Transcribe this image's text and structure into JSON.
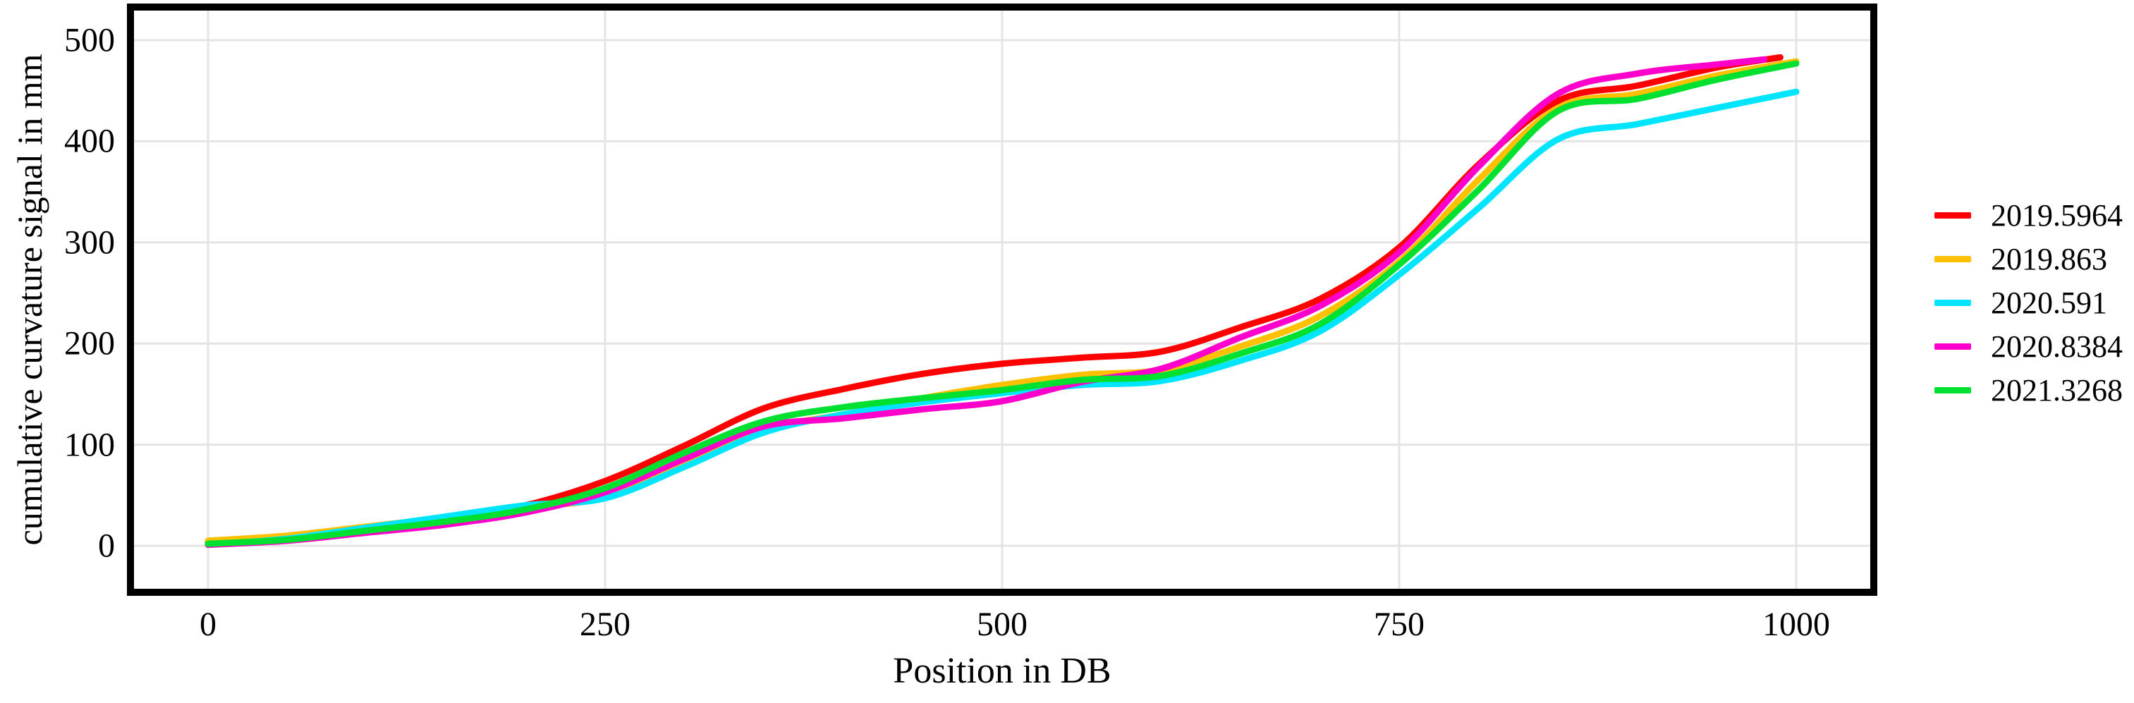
{
  "chart_data": {
    "type": "line",
    "title": "",
    "xlabel": "Position in DB",
    "ylabel": "cumulative curvature signal in mm",
    "xlim": [
      0,
      1000
    ],
    "ylim": [
      0,
      500
    ],
    "x_ticks": [
      0,
      250,
      500,
      750,
      1000
    ],
    "y_ticks": [
      0,
      100,
      200,
      300,
      400,
      500
    ],
    "grid": true,
    "grid_color": "#e4e4e4",
    "border_color": "#000000",
    "legend_position": "right",
    "series": [
      {
        "name": "2019.5964",
        "color": "#ff0000",
        "points": [
          [
            0,
            3
          ],
          [
            50,
            8
          ],
          [
            100,
            17
          ],
          [
            150,
            26
          ],
          [
            200,
            40
          ],
          [
            250,
            64
          ],
          [
            300,
            99
          ],
          [
            350,
            136
          ],
          [
            400,
            155
          ],
          [
            450,
            170
          ],
          [
            500,
            180
          ],
          [
            550,
            186
          ],
          [
            600,
            192
          ],
          [
            650,
            216
          ],
          [
            700,
            244
          ],
          [
            750,
            295
          ],
          [
            800,
            377
          ],
          [
            850,
            440
          ],
          [
            900,
            455
          ],
          [
            950,
            473
          ],
          [
            990,
            483
          ]
        ]
      },
      {
        "name": "2019.863",
        "color": "#ffc000",
        "points": [
          [
            0,
            5
          ],
          [
            50,
            10
          ],
          [
            100,
            19
          ],
          [
            150,
            28
          ],
          [
            200,
            38
          ],
          [
            250,
            48
          ],
          [
            300,
            83
          ],
          [
            350,
            115
          ],
          [
            400,
            130
          ],
          [
            450,
            146
          ],
          [
            500,
            159
          ],
          [
            550,
            169
          ],
          [
            600,
            174
          ],
          [
            650,
            197
          ],
          [
            700,
            227
          ],
          [
            750,
            281
          ],
          [
            800,
            362
          ],
          [
            850,
            433
          ],
          [
            900,
            447
          ],
          [
            950,
            465
          ],
          [
            1000,
            479
          ]
        ]
      },
      {
        "name": "2020.591",
        "color": "#00e5ff",
        "points": [
          [
            0,
            1
          ],
          [
            50,
            7
          ],
          [
            100,
            18
          ],
          [
            150,
            29
          ],
          [
            200,
            40
          ],
          [
            250,
            47
          ],
          [
            300,
            78
          ],
          [
            350,
            112
          ],
          [
            400,
            130
          ],
          [
            450,
            142
          ],
          [
            500,
            151
          ],
          [
            550,
            159
          ],
          [
            600,
            163
          ],
          [
            650,
            183
          ],
          [
            700,
            212
          ],
          [
            750,
            268
          ],
          [
            800,
            334
          ],
          [
            850,
            402
          ],
          [
            900,
            417
          ],
          [
            950,
            433
          ],
          [
            1000,
            449
          ]
        ]
      },
      {
        "name": "2020.8384",
        "color": "#ff00cc",
        "points": [
          [
            0,
            1
          ],
          [
            50,
            5
          ],
          [
            100,
            13
          ],
          [
            150,
            21
          ],
          [
            200,
            33
          ],
          [
            250,
            53
          ],
          [
            300,
            86
          ],
          [
            350,
            118
          ],
          [
            400,
            126
          ],
          [
            450,
            135
          ],
          [
            500,
            143
          ],
          [
            550,
            162
          ],
          [
            600,
            175
          ],
          [
            650,
            206
          ],
          [
            700,
            237
          ],
          [
            750,
            290
          ],
          [
            800,
            375
          ],
          [
            850,
            447
          ],
          [
            900,
            467
          ],
          [
            950,
            476
          ],
          [
            980,
            481
          ]
        ]
      },
      {
        "name": "2021.3268",
        "color": "#00e030",
        "points": [
          [
            0,
            2
          ],
          [
            50,
            6
          ],
          [
            100,
            15
          ],
          [
            150,
            24
          ],
          [
            200,
            36
          ],
          [
            250,
            57
          ],
          [
            300,
            92
          ],
          [
            350,
            123
          ],
          [
            400,
            137
          ],
          [
            450,
            146
          ],
          [
            500,
            154
          ],
          [
            550,
            164
          ],
          [
            600,
            168
          ],
          [
            650,
            190
          ],
          [
            700,
            219
          ],
          [
            750,
            278
          ],
          [
            800,
            352
          ],
          [
            850,
            430
          ],
          [
            900,
            442
          ],
          [
            950,
            461
          ],
          [
            1000,
            477
          ]
        ]
      }
    ]
  }
}
